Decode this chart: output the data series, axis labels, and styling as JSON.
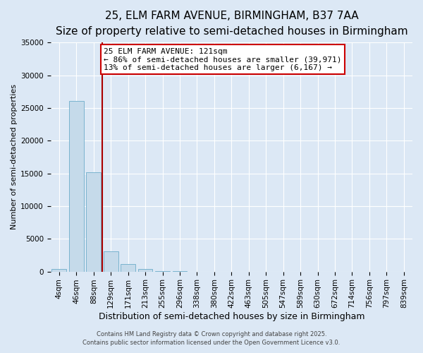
{
  "title": "25, ELM FARM AVENUE, BIRMINGHAM, B37 7AA",
  "subtitle": "Size of property relative to semi-detached houses in Birmingham",
  "xlabel": "Distribution of semi-detached houses by size in Birmingham",
  "ylabel": "Number of semi-detached properties",
  "bar_labels": [
    "4sqm",
    "46sqm",
    "88sqm",
    "129sqm",
    "171sqm",
    "213sqm",
    "255sqm",
    "296sqm",
    "338sqm",
    "380sqm",
    "422sqm",
    "463sqm",
    "505sqm",
    "547sqm",
    "589sqm",
    "630sqm",
    "672sqm",
    "714sqm",
    "756sqm",
    "797sqm",
    "839sqm"
  ],
  "bar_values": [
    400,
    26100,
    15200,
    3100,
    1100,
    350,
    100,
    20,
    5,
    2,
    1,
    1,
    0,
    0,
    0,
    0,
    0,
    0,
    0,
    0,
    0
  ],
  "bar_color": "#c5daea",
  "bar_edgecolor": "#7ab3cf",
  "red_line_x": 2.5,
  "property_line_color": "#aa0000",
  "annotation_text": "25 ELM FARM AVENUE: 121sqm\n← 86% of semi-detached houses are smaller (39,971)\n13% of semi-detached houses are larger (6,167) →",
  "annotation_box_edgecolor": "#cc0000",
  "annotation_box_facecolor": "#ffffff",
  "ylim": [
    0,
    35000
  ],
  "yticks": [
    0,
    5000,
    10000,
    15000,
    20000,
    25000,
    30000,
    35000
  ],
  "background_color": "#dce8f5",
  "grid_color": "#ffffff",
  "footer1": "Contains HM Land Registry data © Crown copyright and database right 2025.",
  "footer2": "Contains public sector information licensed under the Open Government Licence v3.0.",
  "title_fontsize": 11,
  "subtitle_fontsize": 9,
  "xlabel_fontsize": 9,
  "ylabel_fontsize": 8,
  "tick_fontsize": 7.5,
  "annotation_fontsize": 8,
  "footer_fontsize": 6
}
